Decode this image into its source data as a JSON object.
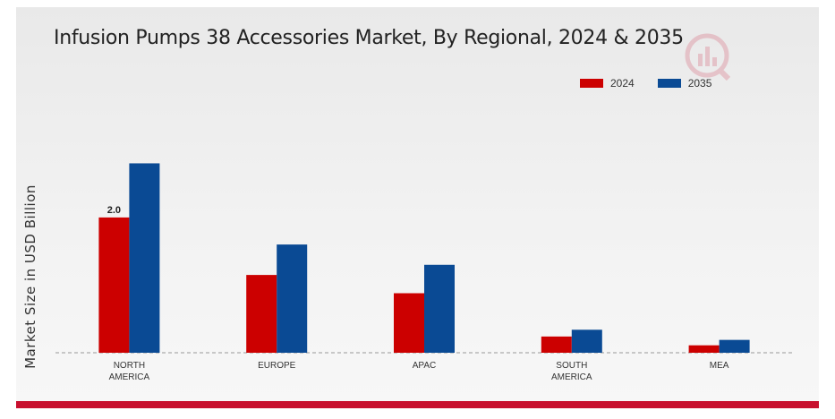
{
  "chart_data": {
    "type": "bar",
    "title": "Infusion Pumps 38 Accessories Market, By Regional, 2024 & 2035",
    "ylabel": "Market Size in USD Billion",
    "xlabel": "",
    "categories": [
      [
        "NORTH",
        "AMERICA"
      ],
      [
        "EUROPE"
      ],
      [
        "APAC"
      ],
      [
        "SOUTH",
        "AMERICA"
      ],
      [
        "MEA"
      ]
    ],
    "series": [
      {
        "name": "2024",
        "color": "#cc0000",
        "values": [
          2.0,
          1.15,
          0.88,
          0.24,
          0.11
        ]
      },
      {
        "name": "2035",
        "color": "#0a4a94",
        "values": [
          2.8,
          1.6,
          1.3,
          0.34,
          0.19
        ]
      }
    ],
    "data_labels": [
      {
        "series": 0,
        "index": 0,
        "text": "2.0"
      }
    ],
    "ylim": [
      0,
      3.6
    ],
    "grid": false,
    "legend_position": "top-right"
  }
}
